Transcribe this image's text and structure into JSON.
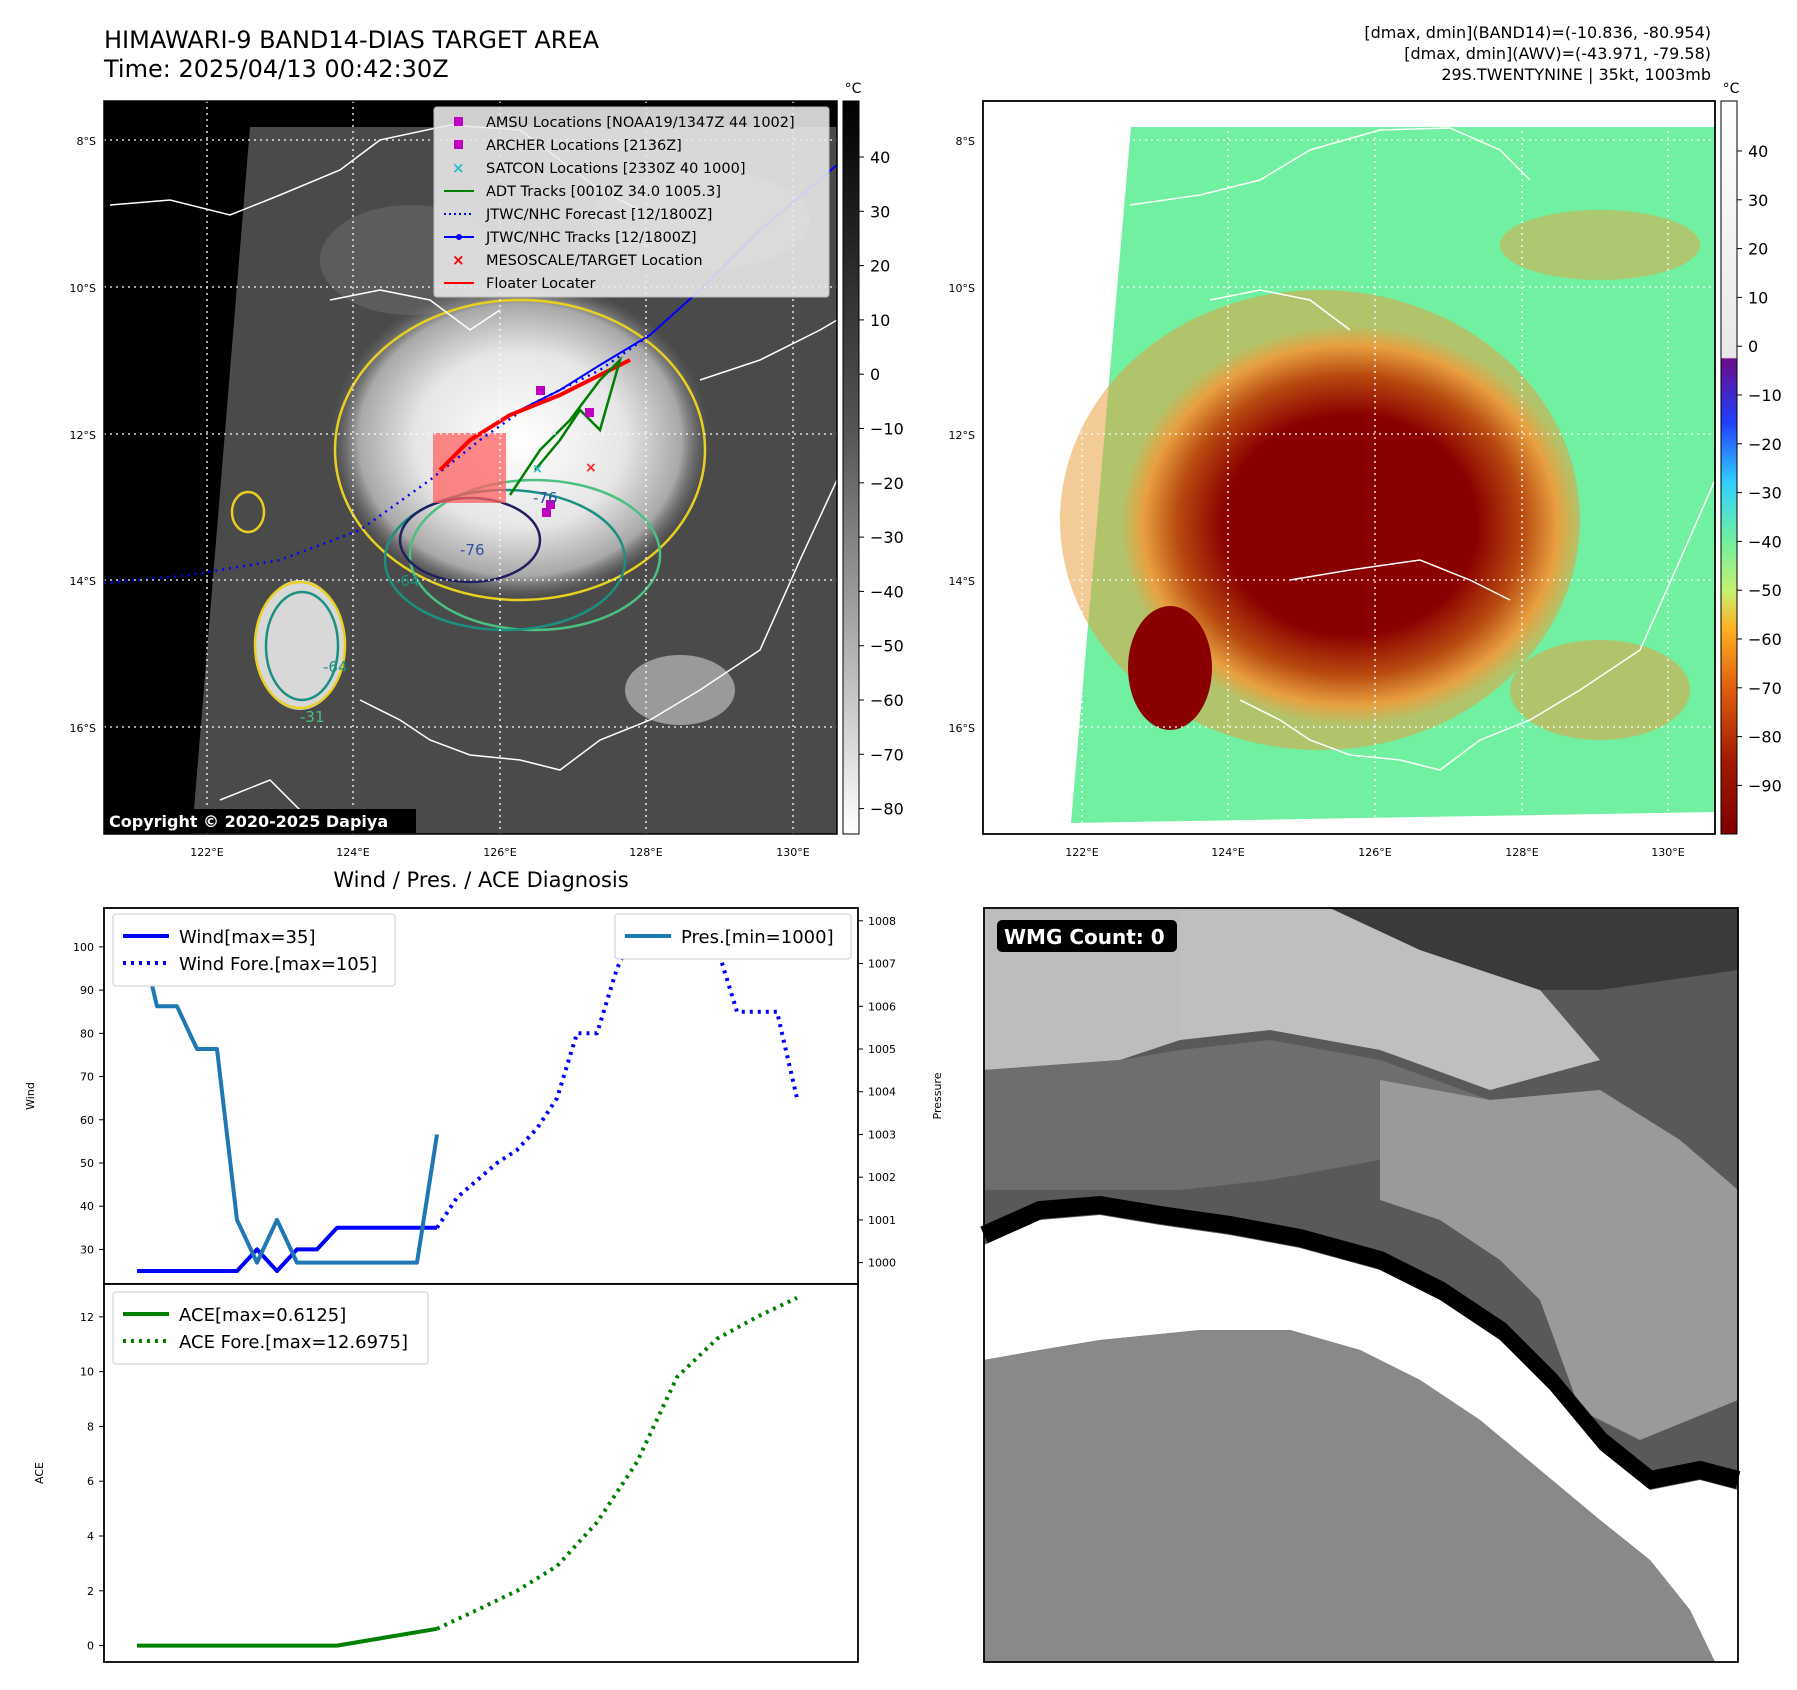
{
  "header": {
    "title": "HIMAWARI-9 BAND14-DIAS TARGET AREA",
    "time": "Time: 2025/04/13 00:42:30Z",
    "stats_band14": "[dmax, dmin](BAND14)=(-10.836, -80.954)",
    "stats_awv": "[dmax, dmin](AWV)=(-43.971, -79.58)",
    "storm": "29S.TWENTYNINE | 35kt, 1003mb"
  },
  "maps": {
    "lat_ticks": [
      "8°S",
      "10°S",
      "12°S",
      "14°S",
      "16°S"
    ],
    "lon_ticks": [
      "122°E",
      "124°E",
      "126°E",
      "128°E",
      "130°E"
    ],
    "copyright": "Copyright © 2020-2025 Dapiya",
    "contour_labels": [
      "-76",
      "-76",
      "-64",
      "-64",
      "-31"
    ],
    "legend": [
      {
        "label": "AMSU Locations [NOAA19/1347Z 44 1002]",
        "color": "#c000c0",
        "marker": "square"
      },
      {
        "label": "ARCHER Locations [2136Z]",
        "color": "#c000c0",
        "marker": "square"
      },
      {
        "label": "SATCON Locations [2330Z 40 1000]",
        "color": "#20c0c0",
        "marker": "x"
      },
      {
        "label": "ADT Tracks [0010Z 34.0 1005.3]",
        "color": "#008000",
        "marker": "line"
      },
      {
        "label": "JTWC/NHC Forecast [12/1800Z]",
        "color": "#0000ff",
        "marker": "dotted"
      },
      {
        "label": "JTWC/NHC Tracks [12/1800Z]",
        "color": "#0000ff",
        "marker": "line-dot"
      },
      {
        "label": "MESOSCALE/TARGET Location",
        "color": "#ff0000",
        "marker": "x"
      },
      {
        "label": "Floater Locater",
        "color": "#ff0000",
        "marker": "line"
      }
    ]
  },
  "colorbars": {
    "unit": "°C",
    "band14_ticks": [
      "40",
      "30",
      "20",
      "10",
      "0",
      "−10",
      "−20",
      "−30",
      "−40",
      "−50",
      "−60",
      "−70",
      "−80"
    ],
    "awv_ticks": [
      "40",
      "30",
      "20",
      "10",
      "0",
      "−10",
      "−20",
      "−30",
      "−40",
      "−50",
      "−60",
      "−70",
      "−80",
      "−90"
    ]
  },
  "wmg": {
    "label": "WMG Count: 0"
  },
  "chart_data": [
    {
      "type": "line",
      "title": "Wind / Pres. / ACE Diagnosis",
      "ylabel": "Wind",
      "ylim": [
        22,
        109
      ],
      "yticks": [
        30,
        40,
        50,
        60,
        70,
        80,
        90,
        100
      ],
      "y2label": "Pressure",
      "y2lim": [
        999.5,
        1008.3
      ],
      "y2ticks": [
        1000,
        1001,
        1002,
        1003,
        1004,
        1005,
        1006,
        1007,
        1008
      ],
      "legend_left": [
        "Wind[max=35]",
        "Wind Fore.[max=105]"
      ],
      "legend_right": [
        "Pres.[min=1000]"
      ],
      "series": [
        {
          "name": "Wind[max=35]",
          "axis": "left",
          "style": "solid",
          "color": "#0000ff",
          "x": [
            0,
            1,
            2,
            3,
            4,
            5,
            6,
            7,
            8,
            9,
            10,
            11,
            12,
            13,
            14,
            15
          ],
          "y": [
            25,
            25,
            25,
            25,
            25,
            25,
            30,
            25,
            30,
            30,
            35,
            35,
            35,
            35,
            35,
            35
          ]
        },
        {
          "name": "Wind Fore.[max=105]",
          "axis": "left",
          "style": "dotted",
          "color": "#0000ff",
          "x": [
            15,
            16,
            17,
            18,
            19,
            20,
            21,
            22,
            23,
            24,
            25,
            26,
            27,
            28,
            29,
            30,
            31,
            32,
            33
          ],
          "y": [
            35,
            42,
            46,
            50,
            53,
            58,
            65,
            80,
            80,
            95,
            105,
            105,
            105,
            105,
            100,
            85,
            85,
            85,
            65
          ]
        },
        {
          "name": "Pres.[min=1000]",
          "axis": "right",
          "style": "solid",
          "color": "#1f77b4",
          "x": [
            0,
            1,
            2,
            3,
            4,
            5,
            6,
            7,
            8,
            9,
            10,
            11,
            12,
            13,
            14,
            15
          ],
          "y": [
            1008,
            1006,
            1006,
            1005,
            1005,
            1001,
            1000,
            1001,
            1000,
            1000,
            1000,
            1000,
            1000,
            1000,
            1000,
            1003
          ]
        }
      ]
    },
    {
      "type": "line",
      "ylabel": "ACE",
      "ylim": [
        -0.6,
        13.2
      ],
      "yticks": [
        0,
        2,
        4,
        6,
        8,
        10,
        12
      ],
      "legend": [
        "ACE[max=0.6125]",
        "ACE Fore.[max=12.6975]"
      ],
      "series": [
        {
          "name": "ACE[max=0.6125]",
          "style": "solid",
          "color": "#008000",
          "x": [
            0,
            10,
            15
          ],
          "y": [
            0,
            0,
            0.6125
          ]
        },
        {
          "name": "ACE Fore.[max=12.6975]",
          "style": "dotted",
          "color": "#008000",
          "x": [
            15,
            17,
            19,
            21,
            23,
            25,
            27,
            29,
            31,
            33
          ],
          "y": [
            0.6125,
            1.3,
            2.0,
            2.9,
            4.5,
            6.7,
            9.8,
            11.2,
            12.0,
            12.6975
          ]
        }
      ]
    }
  ]
}
